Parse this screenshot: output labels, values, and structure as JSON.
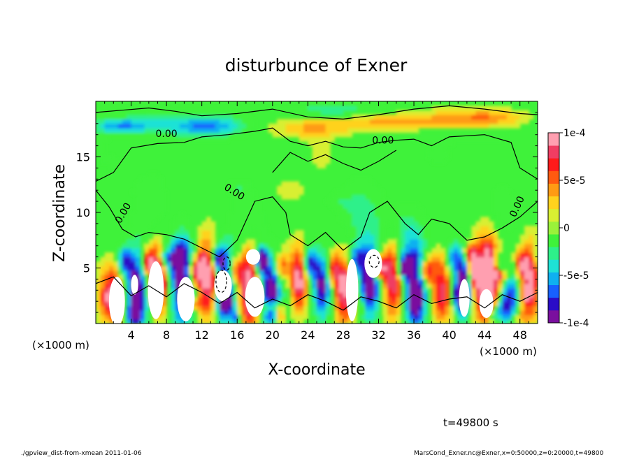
{
  "chart_data": {
    "type": "heatmap",
    "title": "disturbunce of Exner",
    "xlabel": "X-coordinate",
    "ylabel": "Z-coordinate",
    "x_unit": "(×1000 m)",
    "z_unit": "(×1000 m)",
    "xlim": [
      0,
      50
    ],
    "ylim": [
      0,
      20
    ],
    "x_ticks": [
      4,
      8,
      12,
      16,
      20,
      24,
      28,
      32,
      36,
      40,
      44,
      48
    ],
    "y_ticks": [
      5,
      10,
      15
    ],
    "contour_label": "0.00",
    "colorbar": {
      "min": -0.0001,
      "max": 0.0001,
      "tick_labels": [
        "1e-4",
        "5e-5",
        "0",
        "-5e-5",
        "-1e-4"
      ],
      "colors": [
        "#7a0f9e",
        "#2a0cc8",
        "#1760ff",
        "#0fb0f0",
        "#1ee2d6",
        "#2ef08a",
        "#3ff23a",
        "#9af23a",
        "#d8ef32",
        "#ffd21e",
        "#ff9b14",
        "#ff5a10",
        "#ff1a1a",
        "#f03d62",
        "#ff9fb0"
      ]
    },
    "time_label": "t=49800 s",
    "footer_left": "./gpview_dist-from-xmean  2011-01-06",
    "footer_right": "MarsCond_Exner.nc@Exner,x=0:50000,z=0:20000,t=49800"
  }
}
